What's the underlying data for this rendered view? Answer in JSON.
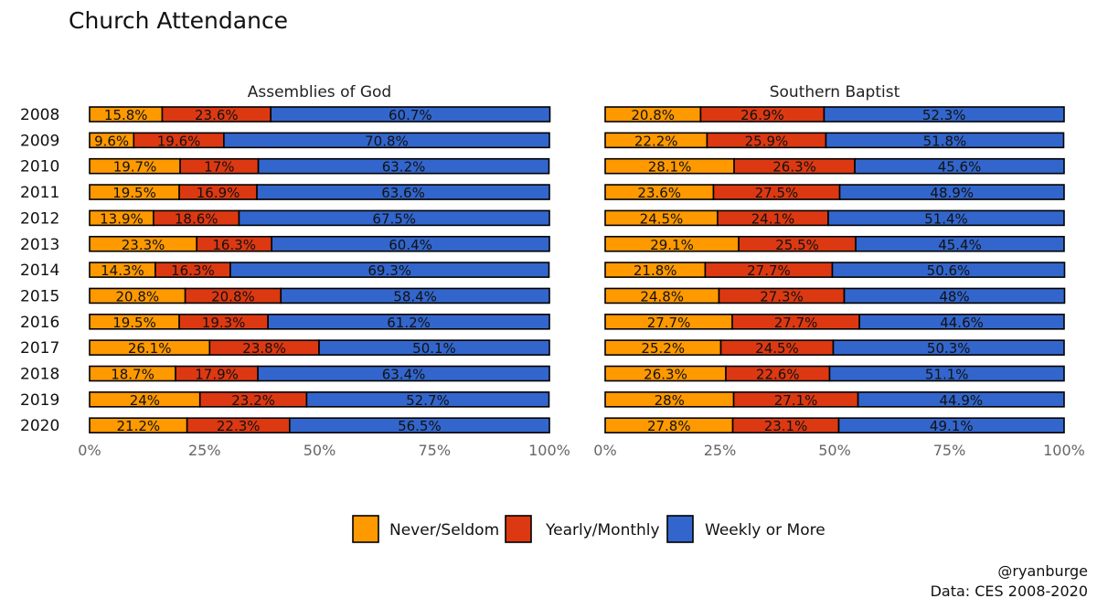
{
  "title": "Church Attendance",
  "caption": [
    "@ryanburge",
    "Data: CES 2008-2020"
  ],
  "colors": {
    "Never/Seldom": "#FF9900",
    "Yearly/Monthly": "#DC3912",
    "Weekly or More": "#3366CC"
  },
  "chart_data": {
    "type": "bar",
    "orientation": "horizontal",
    "stacked": true,
    "xlim": [
      0,
      100
    ],
    "xticks": [
      "0%",
      "25%",
      "50%",
      "75%",
      "100%"
    ],
    "legend_position": "bottom",
    "years": [
      "2008",
      "2009",
      "2010",
      "2011",
      "2012",
      "2013",
      "2014",
      "2015",
      "2016",
      "2017",
      "2018",
      "2019",
      "2020"
    ],
    "categories": [
      "Never/Seldom",
      "Yearly/Monthly",
      "Weekly or More"
    ],
    "facets": [
      {
        "name": "Assemblies of God",
        "series": [
          {
            "name": "Never/Seldom",
            "values": [
              15.8,
              9.6,
              19.7,
              19.5,
              13.9,
              23.3,
              14.3,
              20.8,
              19.5,
              26.1,
              18.7,
              24,
              21.2
            ]
          },
          {
            "name": "Yearly/Monthly",
            "values": [
              23.6,
              19.6,
              17,
              16.9,
              18.6,
              16.3,
              16.3,
              20.8,
              19.3,
              23.8,
              17.9,
              23.2,
              22.3
            ]
          },
          {
            "name": "Weekly or More",
            "values": [
              60.7,
              70.8,
              63.2,
              63.6,
              67.5,
              60.4,
              69.3,
              58.4,
              61.2,
              50.1,
              63.4,
              52.7,
              56.5
            ]
          }
        ]
      },
      {
        "name": "Southern Baptist",
        "series": [
          {
            "name": "Never/Seldom",
            "values": [
              20.8,
              22.2,
              28.1,
              23.6,
              24.5,
              29.1,
              21.8,
              24.8,
              27.7,
              25.2,
              26.3,
              28,
              27.8
            ]
          },
          {
            "name": "Yearly/Monthly",
            "values": [
              26.9,
              25.9,
              26.3,
              27.5,
              24.1,
              25.5,
              27.7,
              27.3,
              27.7,
              24.5,
              22.6,
              27.1,
              23.1
            ]
          },
          {
            "name": "Weekly or More",
            "values": [
              52.3,
              51.8,
              45.6,
              48.9,
              51.4,
              45.4,
              50.6,
              48,
              44.6,
              50.3,
              51.1,
              44.9,
              49.1
            ]
          }
        ]
      }
    ]
  }
}
